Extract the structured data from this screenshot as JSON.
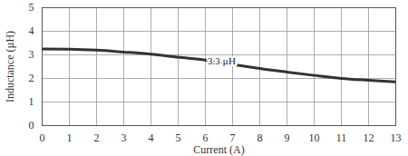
{
  "chart_data": {
    "type": "line",
    "x_label": "Current (A)",
    "y_label": "Inductance (µH)",
    "x": [
      0,
      1,
      2,
      3,
      4,
      5,
      6,
      7,
      8,
      9,
      10,
      11,
      12,
      13
    ],
    "values": [
      3.25,
      3.24,
      3.2,
      3.12,
      3.03,
      2.9,
      2.78,
      2.6,
      2.42,
      2.27,
      2.13,
      2.0,
      1.92,
      1.85
    ],
    "color": "#333333",
    "xlim": [
      0,
      13
    ],
    "xticks": [
      0,
      1,
      2,
      3,
      4,
      5,
      6,
      7,
      8,
      9,
      10,
      11,
      12,
      13
    ],
    "ylim": [
      0,
      5
    ],
    "yticks": [
      0,
      1,
      2,
      3,
      4,
      5
    ],
    "grid": true,
    "annotations": [
      {
        "text": "3.3 µH",
        "x": 6.6,
        "y": 2.75
      }
    ]
  }
}
